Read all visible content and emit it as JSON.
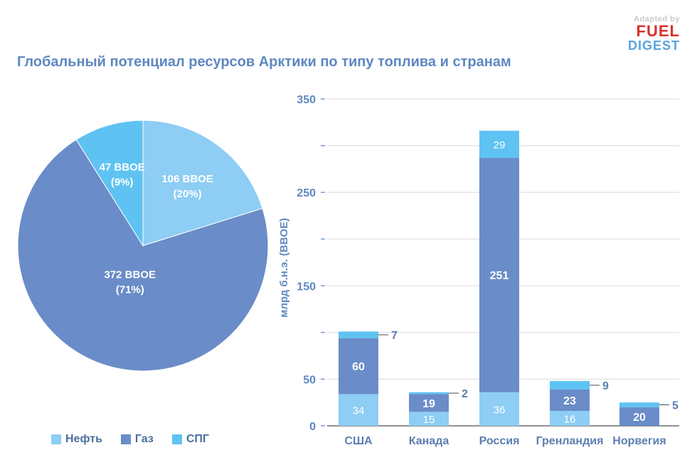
{
  "header": {
    "title": "Глобальный потенциал ресурсов Арктики по типу топлива и странам",
    "logo_adapted": "Adapted by",
    "logo_fuel": "FUEL",
    "logo_digest": "DIGEST"
  },
  "colors": {
    "oil": "#8ecdf4",
    "gas": "#6a8cc8",
    "lng": "#5ec3f2",
    "axis": "#5e88c1",
    "label_dark": "#5b7fb0"
  },
  "legend": [
    {
      "name": "Нефть",
      "color": "#8ecdf4"
    },
    {
      "name": "Газ",
      "color": "#6a8cc8"
    },
    {
      "name": "СПГ",
      "color": "#5ec3f2"
    }
  ],
  "chart_data": [
    {
      "type": "pie",
      "title": "",
      "slices": [
        {
          "series": "Нефть",
          "value": 106,
          "line1": "106 BBOE",
          "line2": "(20%)"
        },
        {
          "series": "Газ",
          "value": 372,
          "line1": "372 BBOE",
          "line2": "(71%)"
        },
        {
          "series": "СПГ",
          "value": 47,
          "line1": "47 BBOE",
          "line2": "(9%)"
        }
      ]
    },
    {
      "type": "bar",
      "stacked": true,
      "ylabel": "млрд б.н.э. (BBOE)",
      "ylim": [
        0,
        350
      ],
      "yticks": [
        0,
        50,
        100,
        150,
        200,
        250,
        300,
        350
      ],
      "ytick_labels": [
        "0",
        "50",
        "",
        "150",
        "",
        "250",
        "",
        "350"
      ],
      "categories": [
        "США",
        "Канада",
        "Россия",
        "Гренландия",
        "Норвегия"
      ],
      "series": [
        {
          "name": "Нефть",
          "values": [
            34,
            15,
            36,
            16,
            0
          ],
          "labels": [
            "34",
            "15",
            "36",
            "16",
            ""
          ]
        },
        {
          "name": "Газ",
          "values": [
            60,
            19,
            251,
            23,
            20
          ],
          "labels": [
            "60",
            "19",
            "251",
            "23",
            "20"
          ]
        },
        {
          "name": "СПГ",
          "values": [
            7,
            2,
            29,
            9,
            5
          ],
          "labels": [
            "7",
            "2",
            "29",
            "9",
            "5"
          ]
        }
      ],
      "grid": true
    }
  ]
}
